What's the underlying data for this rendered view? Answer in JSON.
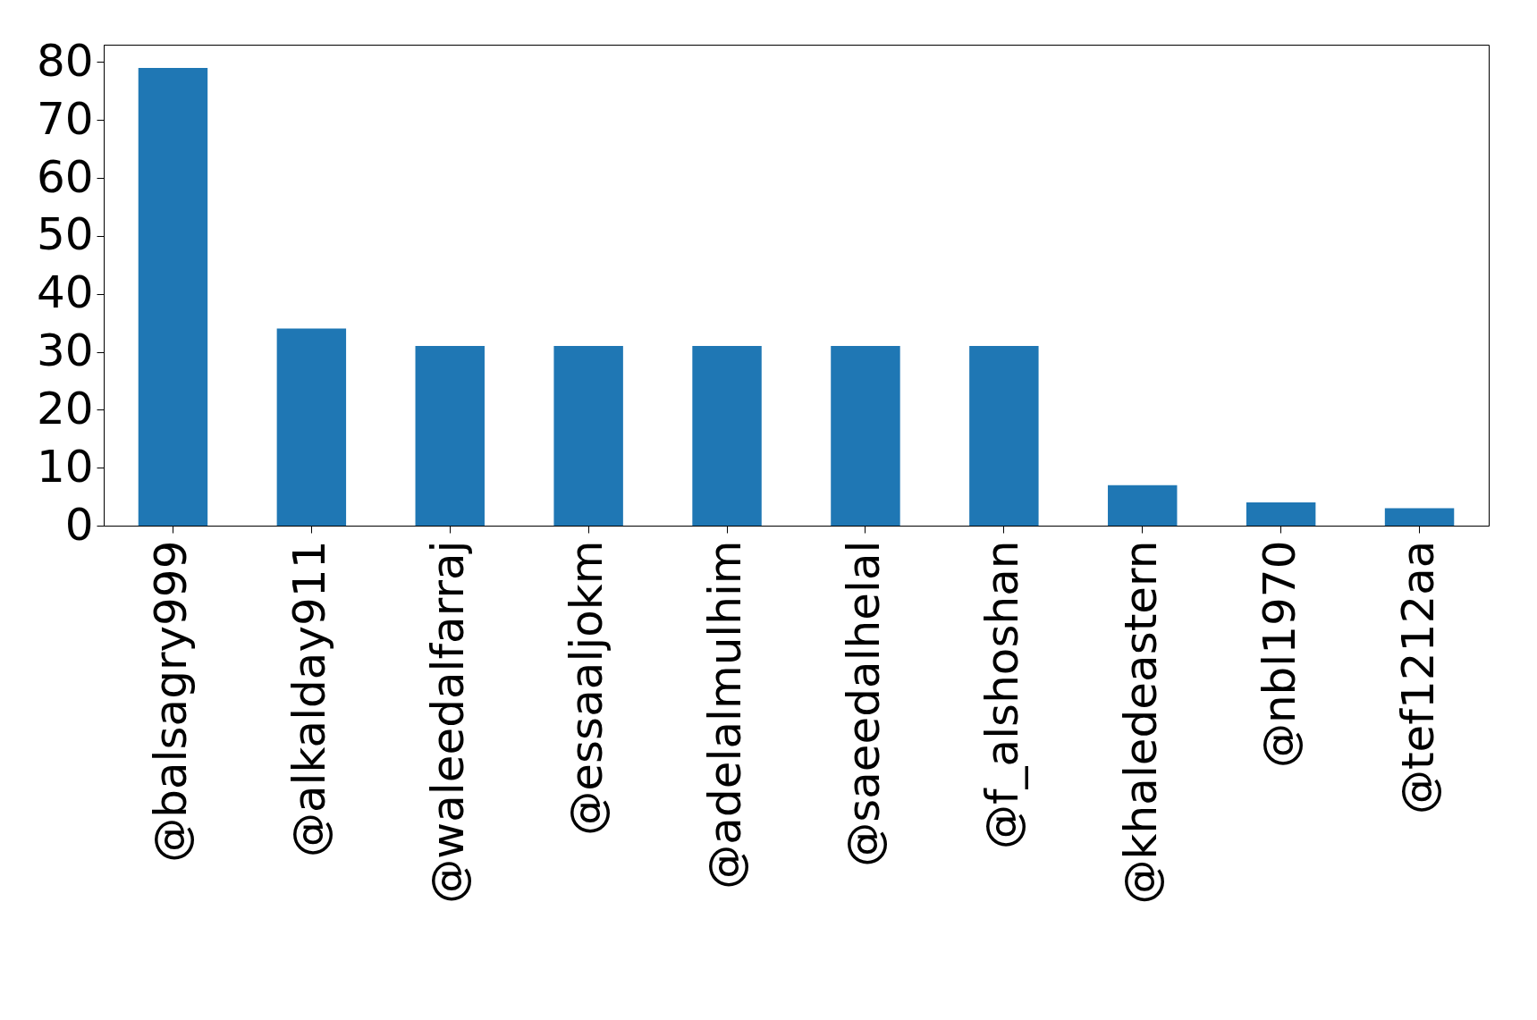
{
  "chart_data": {
    "type": "bar",
    "categories": [
      "@balsagry999",
      "@alkalday911",
      "@waleedalfarraj",
      "@essaaljokm",
      "@adelalmulhim",
      "@saeedalhelal",
      "@f_alshoshan",
      "@khaledeastern",
      "@nbl1970",
      "@tef1212aa"
    ],
    "values": [
      79,
      34,
      31,
      31,
      31,
      31,
      31,
      7,
      4,
      3
    ],
    "color": "#1f77b4",
    "ylim": [
      0,
      83
    ],
    "yticks": [
      0,
      10,
      20,
      30,
      40,
      50,
      60,
      70,
      80
    ],
    "grid": false
  }
}
